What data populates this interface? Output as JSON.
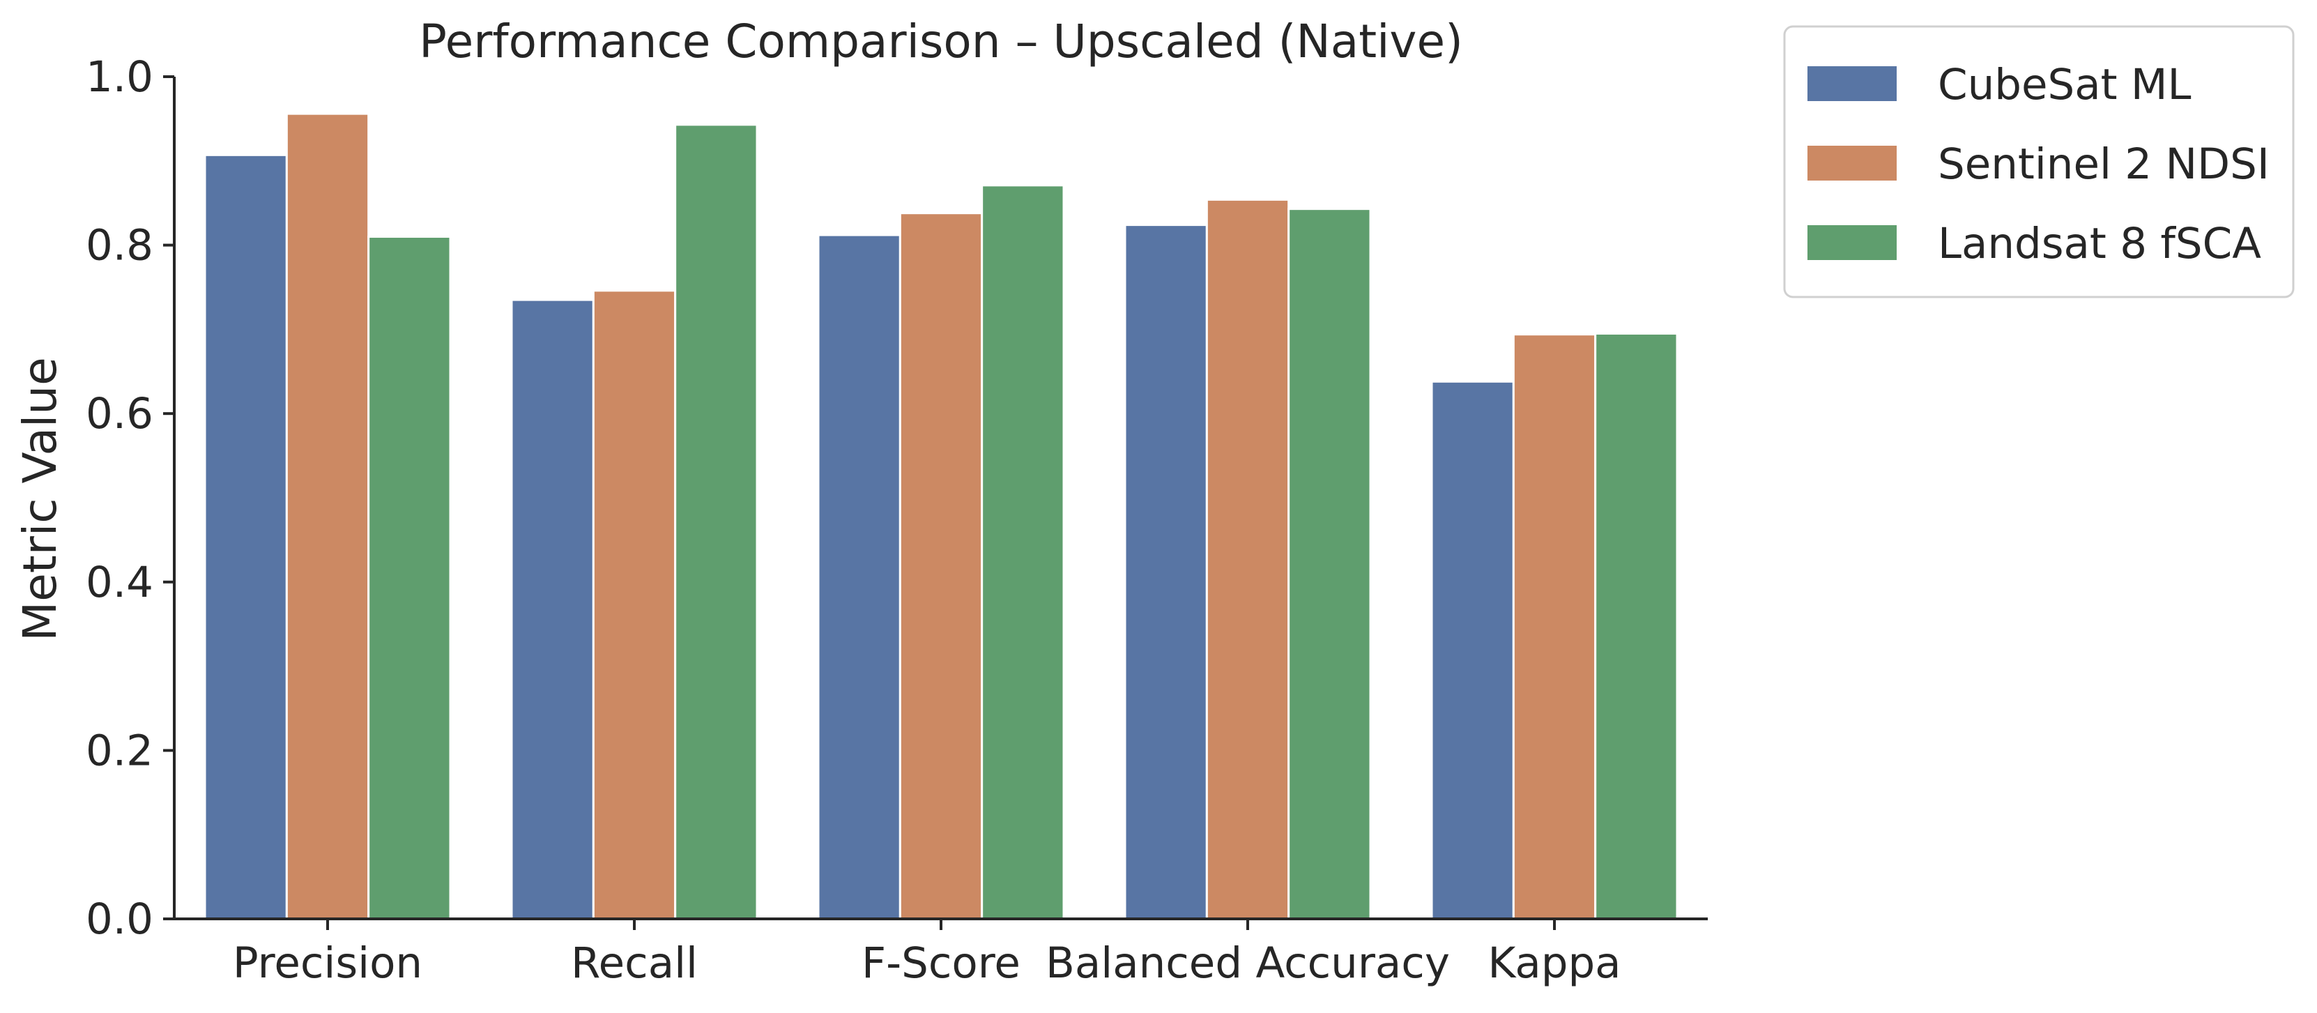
{
  "chart_data": {
    "type": "bar",
    "title": "Performance Comparison – Upscaled (Native)",
    "xlabel": "",
    "ylabel": "Metric Value",
    "ylim": [
      0,
      1.0
    ],
    "yticks": [
      "0.0",
      "0.2",
      "0.4",
      "0.6",
      "0.8",
      "1.0"
    ],
    "categories": [
      "Precision",
      "Recall",
      "F-Score",
      "Balanced Accuracy",
      "Kappa"
    ],
    "series": [
      {
        "name": "CubeSat ML",
        "color": "#5875a4",
        "values": [
          0.907,
          0.735,
          0.812,
          0.824,
          0.638
        ]
      },
      {
        "name": "Sentinel 2 NDSI",
        "color": "#cc8963",
        "values": [
          0.956,
          0.746,
          0.838,
          0.854,
          0.694
        ]
      },
      {
        "name": "Landsat 8 fSCA",
        "color": "#5f9e6e",
        "values": [
          0.81,
          0.943,
          0.871,
          0.843,
          0.695
        ]
      }
    ],
    "legend": "outside-top-right",
    "grid": false
  }
}
